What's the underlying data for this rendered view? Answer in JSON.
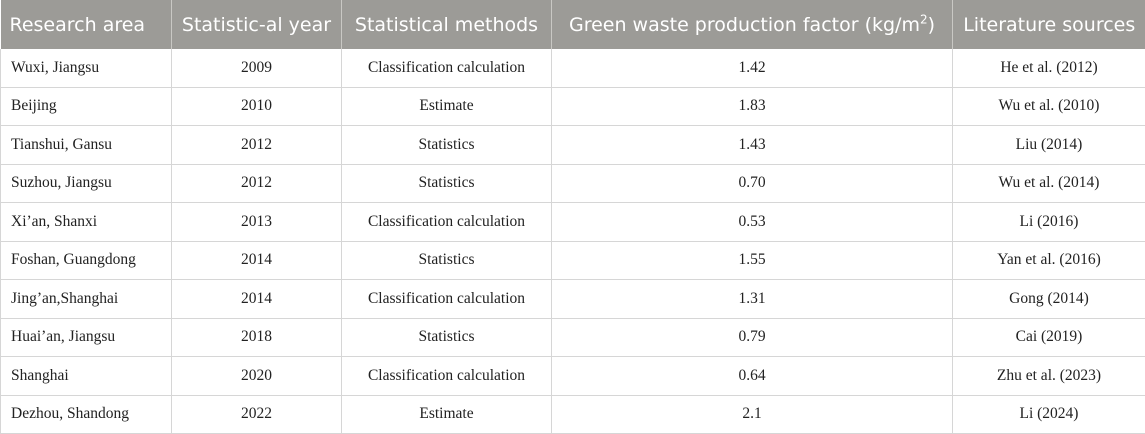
{
  "table": {
    "headers": [
      "Research area",
      "Statistic-al year",
      "Statistical methods",
      "Green waste production factor (kg/m",
      "Literature sources"
    ],
    "header_sup": "2",
    "header_close": ")",
    "rows": [
      [
        "Wuxi, Jiangsu",
        "2009",
        "Classification calculation",
        "1.42",
        "He et al. (2012)"
      ],
      [
        "Beijing",
        "2010",
        "Estimate",
        "1.83",
        "Wu et al. (2010)"
      ],
      [
        "Tianshui, Gansu",
        "2012",
        "Statistics",
        "1.43",
        "Liu (2014)"
      ],
      [
        "Suzhou, Jiangsu",
        "2012",
        "Statistics",
        "0.70",
        "Wu et al. (2014)"
      ],
      [
        "Xi’an, Shanxi",
        "2013",
        "Classification calculation",
        "0.53",
        "Li (2016)"
      ],
      [
        "Foshan, Guangdong",
        "2014",
        "Statistics",
        "1.55",
        "Yan et al. (2016)"
      ],
      [
        "Jing’an,Shanghai",
        "2014",
        "Classification calculation",
        "1.31",
        "Gong (2014)"
      ],
      [
        "Huai’an, Jiangsu",
        "2018",
        "Statistics",
        "0.79",
        "Cai (2019)"
      ],
      [
        "Shanghai",
        "2020",
        "Classification calculation",
        "0.64",
        "Zhu et al. (2023)"
      ],
      [
        "Dezhou, Shandong",
        "2022",
        "Estimate",
        "2.1",
        "Li (2024)"
      ]
    ]
  }
}
